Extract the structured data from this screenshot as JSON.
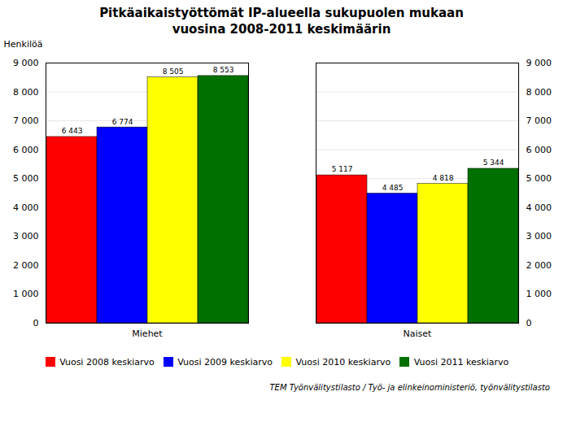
{
  "chart_data": {
    "type": "bar",
    "title": "Pitkäaikaistyöttömät IP-alueella sukupuolen mukaan",
    "subtitle": "vuosina 2008-2011 keskimäärin",
    "ylabel": "Henkilöä",
    "caption": "TEM Työnvälitystilasto / Työ- ja elinkeinoministeriö, työnvälitystilasto",
    "categories": [
      "Miehet",
      "Naiset"
    ],
    "series": [
      {
        "name": "Vuosi 2008 keskiarvo",
        "color": "#FF0000",
        "values": [
          6443,
          5117
        ],
        "value_labels": [
          "6 443",
          "5 117"
        ]
      },
      {
        "name": "Vuosi 2009 keskiarvo",
        "color": "#0000FF",
        "values": [
          6774,
          4485
        ],
        "value_labels": [
          "6 774",
          "4 485"
        ]
      },
      {
        "name": "Vuosi 2010 keskiarvo",
        "color": "#FFFF00",
        "values": [
          8505,
          4818
        ],
        "value_labels": [
          "8 505",
          "4 818"
        ]
      },
      {
        "name": "Vuosi 2011 keskiarvo",
        "color": "#007000",
        "values": [
          8553,
          5344
        ],
        "value_labels": [
          "8 553",
          "5 344"
        ]
      }
    ],
    "ylim": [
      0,
      9000
    ],
    "yticks": [
      0,
      {
        "value": 1000,
        "label": "1 000"
      },
      {
        "value": 2000,
        "label": "2 000"
      },
      {
        "value": 3000,
        "label": "3 000"
      },
      {
        "value": 4000,
        "label": "4 000"
      },
      {
        "value": 5000,
        "label": "5 000"
      },
      {
        "value": 6000,
        "label": "6 000"
      },
      {
        "value": 7000,
        "label": "7 000"
      },
      {
        "value": 8000,
        "label": "8 000"
      },
      {
        "value": 9000,
        "label": "9 000"
      }
    ],
    "grid": true,
    "legend": "bottom",
    "data_labels": true
  }
}
